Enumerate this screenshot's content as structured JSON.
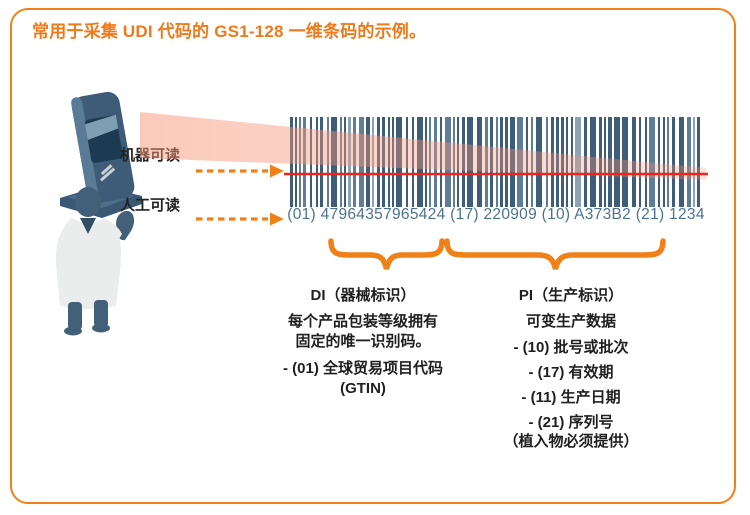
{
  "title": "常用于采集 UDI 代码的 GS1-128 一维条码的示例。",
  "scanner_row": {
    "label": "机器可读"
  },
  "person_row": {
    "label": "人工可读"
  },
  "barcode": {
    "human_readable": "(01) 47964357965424 (17) 220909 (10) A373B2 (21) 1234"
  },
  "di_section": {
    "heading": "DI（器械标识）",
    "lines": [
      "每个产品包装等级拥有",
      "固定的唯一识别码。",
      "- (01) 全球贸易项目代码",
      "(GTIN)"
    ]
  },
  "pi_section": {
    "heading": "PI（生产标识）",
    "lines": [
      "可变生产数据",
      "- (10) 批号或批次",
      "- (17) 有效期",
      "- (11) 生产日期",
      "- (21) 序列号",
      "（植入物必须提供）"
    ]
  },
  "colors": {
    "accent_orange": "#F08119",
    "title_orange": "#F0791A",
    "laser_red": "#E8261B",
    "beam_pink": "#F69678",
    "barcode_bar_dark": "#3E5D79",
    "barcode_bar_mid": "#5F7D96",
    "barcode_bar_light": "#8BA3B5",
    "human_readable_text": "#4C7292",
    "body_text": "#1F1F1F",
    "figure_slate": "#426179",
    "coat_white": "#EBEDED"
  }
}
